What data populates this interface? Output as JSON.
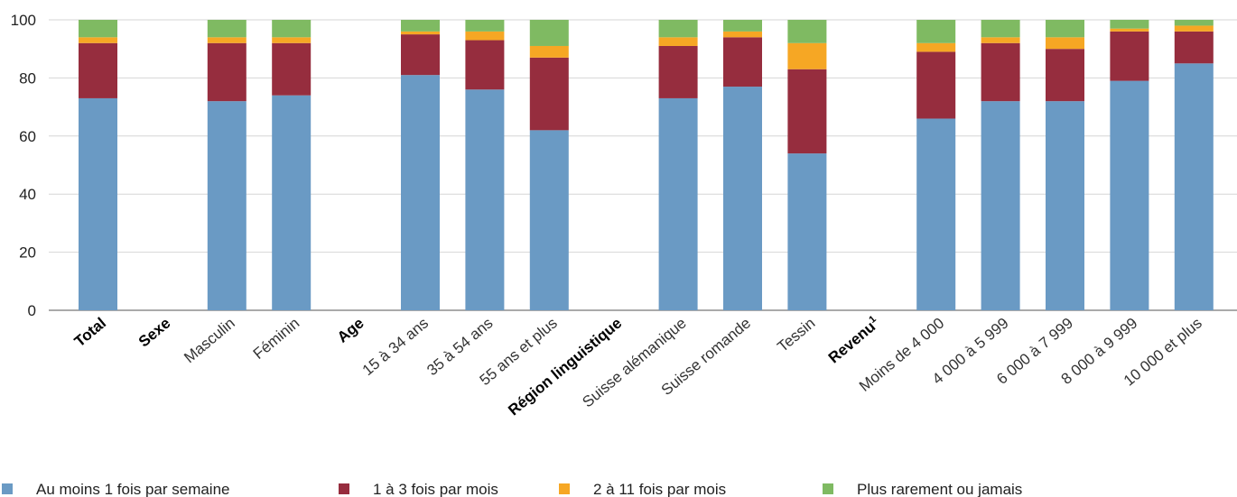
{
  "chart_data": {
    "type": "bar",
    "stacked": true,
    "ylim": [
      0,
      100
    ],
    "yticks": [
      0,
      20,
      40,
      60,
      80,
      100
    ],
    "grid": true,
    "legend_position": "bottom",
    "categories": [
      {
        "label": "Total",
        "bold": true,
        "sup": ""
      },
      {
        "label": "Sexe",
        "bold": true,
        "sup": ""
      },
      {
        "label": "Masculin",
        "bold": false,
        "sup": ""
      },
      {
        "label": "Féminin",
        "bold": false,
        "sup": ""
      },
      {
        "label": "Age",
        "bold": true,
        "sup": ""
      },
      {
        "label": "15 à 34 ans",
        "bold": false,
        "sup": ""
      },
      {
        "label": "35 à 54 ans",
        "bold": false,
        "sup": ""
      },
      {
        "label": "55 ans et plus",
        "bold": false,
        "sup": ""
      },
      {
        "label": "Région linguistique",
        "bold": true,
        "sup": ""
      },
      {
        "label": "Suisse alémanique",
        "bold": false,
        "sup": ""
      },
      {
        "label": "Suisse romande",
        "bold": false,
        "sup": ""
      },
      {
        "label": "Tessin",
        "bold": false,
        "sup": ""
      },
      {
        "label": "Revenu",
        "bold": true,
        "sup": "1"
      },
      {
        "label": "Moins de 4 000",
        "bold": false,
        "sup": ""
      },
      {
        "label": "4 000 à 5 999",
        "bold": false,
        "sup": ""
      },
      {
        "label": "6 000 à 7 999",
        "bold": false,
        "sup": ""
      },
      {
        "label": "8 000 à 9 999",
        "bold": false,
        "sup": ""
      },
      {
        "label": "10 000 et plus",
        "bold": false,
        "sup": ""
      }
    ],
    "series": [
      {
        "name": "Au moins 1 fois par semaine",
        "color": "#6a9ac4",
        "values": [
          73,
          null,
          72,
          74,
          null,
          81,
          76,
          62,
          null,
          73,
          77,
          54,
          null,
          66,
          72,
          72,
          79,
          85
        ]
      },
      {
        "name": "1 à 3 fois par mois",
        "color": "#962d3e",
        "values": [
          19,
          null,
          20,
          18,
          null,
          14,
          17,
          25,
          null,
          18,
          17,
          29,
          null,
          23,
          20,
          18,
          17,
          11
        ]
      },
      {
        "name": "2 à 11 fois par mois",
        "color": "#f6a724",
        "values": [
          2,
          null,
          2,
          2,
          null,
          1,
          3,
          4,
          null,
          3,
          2,
          9,
          null,
          3,
          2,
          4,
          1,
          2
        ]
      },
      {
        "name": "Plus rarement ou jamais",
        "color": "#7fba62",
        "values": [
          6,
          null,
          6,
          6,
          null,
          4,
          4,
          9,
          null,
          6,
          4,
          8,
          null,
          8,
          6,
          6,
          3,
          2
        ]
      }
    ]
  }
}
